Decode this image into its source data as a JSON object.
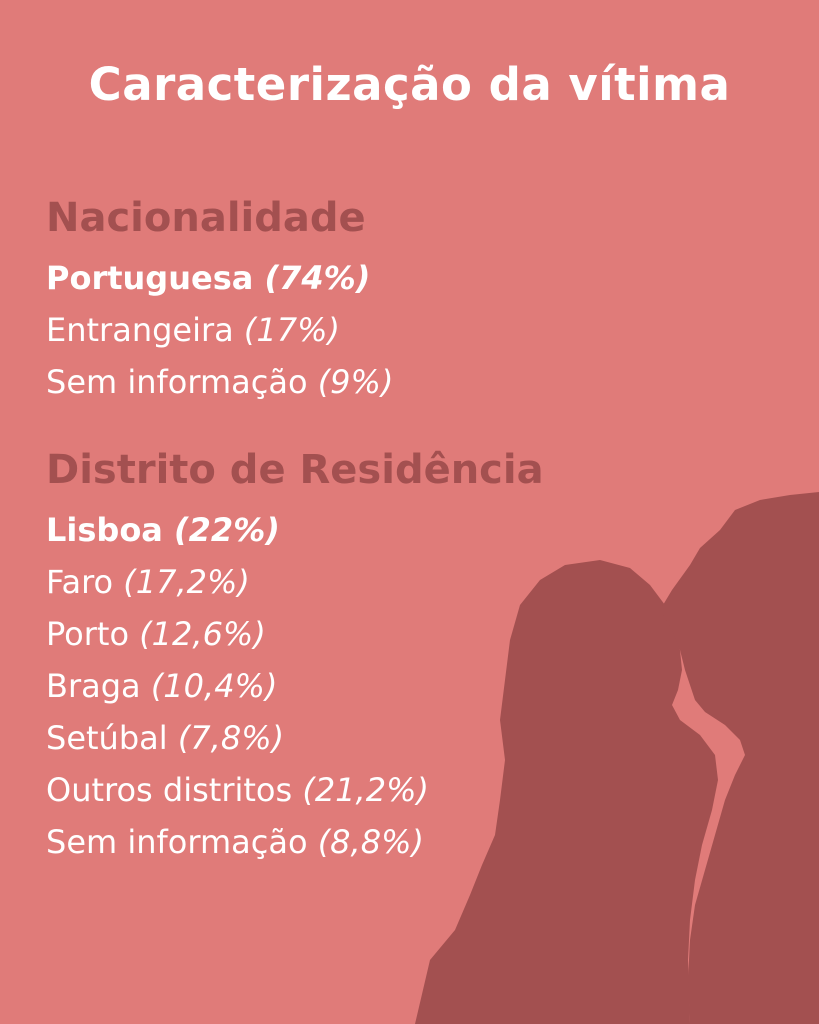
{
  "title": "Caracterização da vítima",
  "colors": {
    "background": "#e07b79",
    "heading": "#a35050",
    "text": "#ffffff",
    "silhouette": "#a35050"
  },
  "image": {
    "icon": "kissing-couple-silhouette"
  },
  "nationality": {
    "heading": "Nacionalidade",
    "items": [
      {
        "label": "Portuguesa",
        "value": "(74%)"
      },
      {
        "label": "Entrangeira",
        "value": "(17%)"
      },
      {
        "label": "Sem informação",
        "value": "(9%)"
      }
    ]
  },
  "district": {
    "heading": "Distrito de Residência",
    "items": [
      {
        "label": "Lisboa",
        "value": "(22%)"
      },
      {
        "label": "Faro",
        "value": "(17,2%)"
      },
      {
        "label": "Porto",
        "value": "(12,6%)"
      },
      {
        "label": "Braga",
        "value": "(10,4%)"
      },
      {
        "label": "Setúbal",
        "value": "(7,8%)"
      },
      {
        "label": "Outros distritos",
        "value": "(21,2%)"
      },
      {
        "label": "Sem informação",
        "value": "(8,8%)"
      }
    ]
  }
}
